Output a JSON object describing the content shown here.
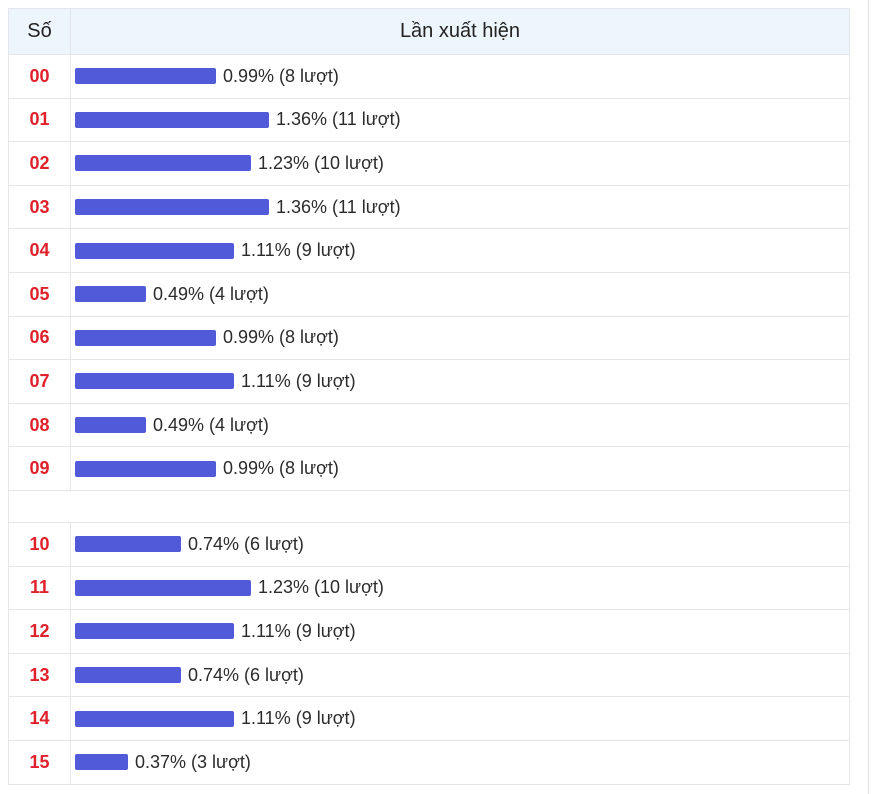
{
  "table": {
    "header": {
      "number": "Số",
      "appearances": "Lần xuất hiện"
    },
    "bar_color": "#515bd9",
    "number_color": "#e0212b",
    "groups": [
      [
        {
          "number": "00",
          "label": "0.99% (8 lượt)",
          "count": 8
        },
        {
          "number": "01",
          "label": "1.36% (11 lượt)",
          "count": 11
        },
        {
          "number": "02",
          "label": "1.23% (10 lượt)",
          "count": 10
        },
        {
          "number": "03",
          "label": "1.36% (11 lượt)",
          "count": 11
        },
        {
          "number": "04",
          "label": "1.11% (9 lượt)",
          "count": 9
        },
        {
          "number": "05",
          "label": "0.49% (4 lượt)",
          "count": 4
        },
        {
          "number": "06",
          "label": "0.99% (8 lượt)",
          "count": 8
        },
        {
          "number": "07",
          "label": "1.11% (9 lượt)",
          "count": 9
        },
        {
          "number": "08",
          "label": "0.49% (4 lượt)",
          "count": 4
        },
        {
          "number": "09",
          "label": "0.99% (8 lượt)",
          "count": 8
        }
      ],
      [
        {
          "number": "10",
          "label": "0.74% (6 lượt)",
          "count": 6
        },
        {
          "number": "11",
          "label": "1.23% (10 lượt)",
          "count": 10
        },
        {
          "number": "12",
          "label": "1.11% (9 lượt)",
          "count": 9
        },
        {
          "number": "13",
          "label": "0.74% (6 lượt)",
          "count": 6
        },
        {
          "number": "14",
          "label": "1.11% (9 lượt)",
          "count": 9
        },
        {
          "number": "15",
          "label": "0.37% (3 lượt)",
          "count": 3
        }
      ]
    ]
  }
}
